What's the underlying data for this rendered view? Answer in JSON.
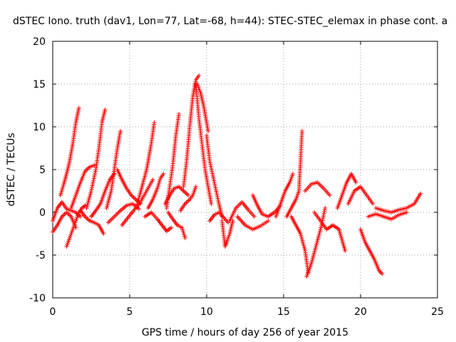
{
  "chart_data": {
    "type": "scatter",
    "title": "dSTEC Iono. truth (dav1, Lon=77, Lat=-68, h=44): STEC-STEC_elemax in phase cont. a",
    "xlabel": "GPS time / hours of day 256 of year 2015",
    "ylabel": "dSTEC  / TECUs",
    "xlim": [
      0,
      25
    ],
    "ylim": [
      -10,
      20
    ],
    "xticks": [
      0,
      5,
      10,
      15,
      20,
      25
    ],
    "yticks": [
      -10,
      -5,
      0,
      5,
      10,
      15,
      20
    ],
    "grid": true,
    "marker": "plus",
    "marker_color": "#ff0000",
    "series": [
      {
        "values": [
          [
            0.0,
            -2.3
          ],
          [
            0.3,
            -1.5
          ],
          [
            0.6,
            -0.5
          ],
          [
            0.9,
            0.0
          ],
          [
            1.2,
            -0.5
          ],
          [
            1.5,
            -1.8
          ]
        ]
      },
      {
        "values": [
          [
            0.0,
            -1.0
          ],
          [
            0.3,
            0.5
          ],
          [
            0.6,
            1.2
          ],
          [
            0.9,
            0.4
          ],
          [
            1.2,
            0.2
          ],
          [
            1.5,
            0.0
          ],
          [
            1.8,
            -0.5
          ]
        ]
      },
      {
        "values": [
          [
            0.5,
            2.0
          ],
          [
            0.7,
            3.2
          ],
          [
            0.9,
            4.5
          ],
          [
            1.1,
            6.0
          ],
          [
            1.3,
            8.0
          ],
          [
            1.5,
            10.5
          ],
          [
            1.7,
            12.2
          ]
        ]
      },
      {
        "values": [
          [
            0.9,
            -4.0
          ],
          [
            1.1,
            -3.0
          ],
          [
            1.3,
            -2.0
          ],
          [
            1.5,
            -1.0
          ],
          [
            1.7,
            0.0
          ],
          [
            1.9,
            0.5
          ],
          [
            2.1,
            0.8
          ]
        ]
      },
      {
        "values": [
          [
            1.2,
            0.5
          ],
          [
            1.5,
            2.0
          ],
          [
            1.8,
            3.5
          ],
          [
            2.1,
            4.8
          ],
          [
            2.4,
            5.3
          ],
          [
            2.7,
            5.5
          ]
        ]
      },
      {
        "values": [
          [
            2.2,
            0.5
          ],
          [
            2.5,
            2.5
          ],
          [
            2.8,
            5.0
          ],
          [
            3.0,
            7.5
          ],
          [
            3.2,
            10.5
          ],
          [
            3.4,
            12.0
          ]
        ]
      },
      {
        "values": [
          [
            1.8,
            0.2
          ],
          [
            2.1,
            -0.5
          ],
          [
            2.4,
            -1.0
          ],
          [
            2.7,
            -1.2
          ],
          [
            3.0,
            -1.5
          ],
          [
            3.3,
            -2.5
          ]
        ]
      },
      {
        "values": [
          [
            2.5,
            -0.5
          ],
          [
            2.8,
            0.2
          ],
          [
            3.1,
            1.0
          ],
          [
            3.4,
            2.5
          ],
          [
            3.7,
            3.8
          ],
          [
            4.0,
            4.5
          ]
        ]
      },
      {
        "values": [
          [
            3.5,
            0.5
          ],
          [
            3.8,
            2.5
          ],
          [
            4.0,
            5.0
          ],
          [
            4.2,
            7.5
          ],
          [
            4.4,
            9.5
          ]
        ]
      },
      {
        "values": [
          [
            4.2,
            5.0
          ],
          [
            4.5,
            3.8
          ],
          [
            4.8,
            2.8
          ],
          [
            5.1,
            2.0
          ],
          [
            5.4,
            1.5
          ],
          [
            5.7,
            1.0
          ]
        ]
      },
      {
        "values": [
          [
            3.6,
            -1.2
          ],
          [
            4.0,
            -0.5
          ],
          [
            4.4,
            0.2
          ],
          [
            4.8,
            0.8
          ],
          [
            5.2,
            1.0
          ],
          [
            5.6,
            0.4
          ]
        ]
      },
      {
        "values": [
          [
            4.5,
            -1.5
          ],
          [
            4.9,
            -0.6
          ],
          [
            5.3,
            0.3
          ],
          [
            5.7,
            1.2
          ],
          [
            6.1,
            2.5
          ],
          [
            6.5,
            3.8
          ]
        ]
      },
      {
        "values": [
          [
            5.5,
            1.0
          ],
          [
            5.8,
            3.0
          ],
          [
            6.1,
            5.0
          ],
          [
            6.4,
            8.0
          ],
          [
            6.6,
            10.5
          ]
        ]
      },
      {
        "values": [
          [
            6.2,
            0.5
          ],
          [
            6.5,
            1.5
          ],
          [
            6.8,
            2.8
          ],
          [
            7.0,
            4.0
          ],
          [
            7.2,
            4.5
          ]
        ]
      },
      {
        "values": [
          [
            6.0,
            -0.5
          ],
          [
            6.4,
            0.0
          ],
          [
            6.8,
            -0.8
          ],
          [
            7.1,
            -1.5
          ],
          [
            7.4,
            -2.2
          ],
          [
            7.7,
            -1.8
          ]
        ]
      },
      {
        "values": [
          [
            7.4,
            0.5
          ],
          [
            7.6,
            3.0
          ],
          [
            7.8,
            5.5
          ],
          [
            8.0,
            9.0
          ],
          [
            8.2,
            11.5
          ]
        ]
      },
      {
        "values": [
          [
            7.3,
            1.0
          ],
          [
            7.6,
            2.0
          ],
          [
            7.9,
            2.8
          ],
          [
            8.2,
            3.0
          ],
          [
            8.5,
            2.5
          ],
          [
            8.8,
            2.0
          ]
        ]
      },
      {
        "values": [
          [
            7.5,
            0.0
          ],
          [
            7.8,
            -0.8
          ],
          [
            8.1,
            -1.5
          ],
          [
            8.4,
            -1.8
          ],
          [
            8.6,
            -3.0
          ]
        ]
      },
      {
        "values": [
          [
            8.3,
            0.2
          ],
          [
            8.6,
            1.0
          ],
          [
            8.9,
            1.5
          ],
          [
            9.1,
            2.0
          ],
          [
            9.3,
            3.0
          ]
        ]
      },
      {
        "values": [
          [
            8.5,
            3.0
          ],
          [
            8.7,
            6.0
          ],
          [
            8.9,
            10.0
          ],
          [
            9.1,
            13.5
          ],
          [
            9.3,
            15.5
          ],
          [
            9.5,
            16.0
          ]
        ]
      },
      {
        "values": [
          [
            9.4,
            15.0
          ],
          [
            9.6,
            14.0
          ],
          [
            9.8,
            12.5
          ],
          [
            10.0,
            10.5
          ],
          [
            10.1,
            9.5
          ]
        ]
      },
      {
        "values": [
          [
            9.3,
            15.0
          ],
          [
            9.5,
            11.0
          ],
          [
            9.7,
            8.0
          ],
          [
            9.9,
            5.0
          ],
          [
            10.1,
            3.0
          ],
          [
            10.3,
            1.0
          ]
        ]
      },
      {
        "values": [
          [
            10.0,
            9.0
          ],
          [
            10.2,
            6.0
          ],
          [
            10.5,
            3.5
          ],
          [
            10.8,
            1.0
          ],
          [
            11.0,
            -0.5
          ]
        ]
      },
      {
        "values": [
          [
            10.2,
            -1.0
          ],
          [
            10.5,
            -0.3
          ],
          [
            10.8,
            0.0
          ],
          [
            11.1,
            -0.6
          ],
          [
            11.4,
            -1.2
          ]
        ]
      },
      {
        "values": [
          [
            11.0,
            -1.0
          ],
          [
            11.1,
            -2.5
          ],
          [
            11.2,
            -4.0
          ],
          [
            11.3,
            -3.5
          ],
          [
            11.5,
            -2.5
          ],
          [
            11.7,
            -1.0
          ]
        ]
      },
      {
        "values": [
          [
            11.5,
            -1.0
          ],
          [
            11.9,
            0.5
          ],
          [
            12.3,
            1.2
          ],
          [
            12.7,
            0.3
          ],
          [
            13.1,
            -0.5
          ]
        ]
      },
      {
        "values": [
          [
            12.0,
            -0.5
          ],
          [
            12.5,
            -1.5
          ],
          [
            13.0,
            -2.0
          ],
          [
            13.5,
            -1.6
          ],
          [
            14.0,
            -1.0
          ]
        ]
      },
      {
        "values": [
          [
            13.0,
            2.0
          ],
          [
            13.3,
            0.8
          ],
          [
            13.6,
            -0.2
          ],
          [
            14.0,
            -0.5
          ],
          [
            14.4,
            0.0
          ],
          [
            14.8,
            0.8
          ]
        ]
      },
      {
        "values": [
          [
            14.5,
            -0.5
          ],
          [
            14.8,
            1.0
          ],
          [
            15.1,
            2.5
          ],
          [
            15.4,
            3.5
          ],
          [
            15.6,
            4.5
          ]
        ]
      },
      {
        "values": [
          [
            15.2,
            -0.5
          ],
          [
            15.5,
            0.5
          ],
          [
            15.8,
            1.5
          ],
          [
            16.0,
            2.5
          ],
          [
            16.2,
            9.5
          ]
        ]
      },
      {
        "values": [
          [
            15.5,
            -0.5
          ],
          [
            15.8,
            -1.5
          ],
          [
            16.1,
            -2.5
          ],
          [
            16.4,
            -4.5
          ],
          [
            16.6,
            -7.0
          ]
        ]
      },
      {
        "values": [
          [
            16.5,
            -7.5
          ],
          [
            16.8,
            -6.0
          ],
          [
            17.1,
            -4.0
          ],
          [
            17.4,
            -2.0
          ],
          [
            17.7,
            0.5
          ]
        ]
      },
      {
        "values": [
          [
            16.4,
            2.5
          ],
          [
            16.8,
            3.3
          ],
          [
            17.2,
            3.5
          ],
          [
            17.6,
            2.8
          ],
          [
            18.0,
            2.0
          ]
        ]
      },
      {
        "values": [
          [
            17.0,
            0.0
          ],
          [
            17.4,
            -1.0
          ],
          [
            17.8,
            -2.0
          ],
          [
            18.2,
            -1.5
          ],
          [
            18.6,
            -2.0
          ],
          [
            19.0,
            -4.5
          ]
        ]
      },
      {
        "values": [
          [
            18.5,
            0.5
          ],
          [
            18.8,
            2.0
          ],
          [
            19.1,
            3.5
          ],
          [
            19.4,
            4.5
          ],
          [
            19.7,
            3.5
          ]
        ]
      },
      {
        "values": [
          [
            19.2,
            1.0
          ],
          [
            19.6,
            2.5
          ],
          [
            20.0,
            3.0
          ],
          [
            20.4,
            2.0
          ],
          [
            20.8,
            1.0
          ]
        ]
      },
      {
        "values": [
          [
            20.0,
            -2.0
          ],
          [
            20.3,
            -3.5
          ],
          [
            20.6,
            -4.5
          ],
          [
            20.9,
            -5.5
          ],
          [
            21.2,
            -6.8
          ],
          [
            21.4,
            -7.2
          ]
        ]
      },
      {
        "values": [
          [
            20.5,
            -0.5
          ],
          [
            21.0,
            -0.2
          ],
          [
            21.5,
            -0.5
          ],
          [
            22.0,
            -0.8
          ],
          [
            22.5,
            -0.3
          ],
          [
            23.0,
            0.0
          ]
        ]
      },
      {
        "values": [
          [
            21.0,
            0.5
          ],
          [
            21.5,
            0.2
          ],
          [
            22.0,
            0.0
          ],
          [
            22.5,
            0.3
          ],
          [
            23.0,
            0.5
          ],
          [
            23.5,
            1.0
          ],
          [
            23.9,
            2.2
          ]
        ]
      }
    ]
  }
}
